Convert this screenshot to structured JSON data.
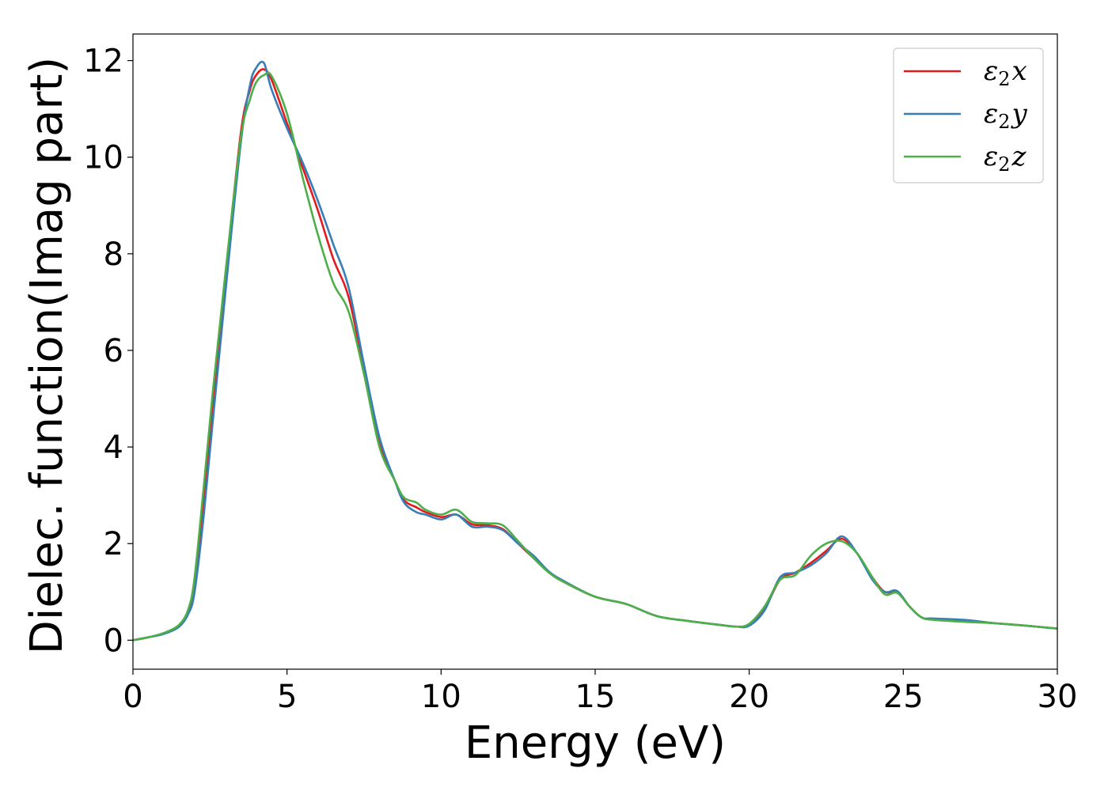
{
  "chart_data": {
    "type": "line",
    "title": "",
    "xlabel": "Energy (eV)",
    "ylabel": "Dielec. function(Imag part)",
    "xlim": [
      0,
      30
    ],
    "ylim": [
      -0.6,
      12.55
    ],
    "xticks": [
      0,
      5,
      10,
      15,
      20,
      25,
      30
    ],
    "yticks": [
      0,
      2,
      4,
      6,
      8,
      10,
      12
    ],
    "grid": false,
    "legend_placement": "top-right",
    "series": [
      {
        "name": "ε2x",
        "legend": {
          "base": "ε",
          "sub": "2",
          "var": "x"
        },
        "color": "#e41a1c",
        "x": [
          0,
          0.5,
          1.0,
          1.5,
          1.8,
          2.0,
          2.3,
          2.6,
          3.0,
          3.5,
          3.8,
          4.0,
          4.25,
          4.5,
          5.0,
          5.5,
          6.0,
          6.5,
          7.0,
          7.5,
          8.0,
          8.5,
          8.8,
          9.2,
          9.5,
          10.0,
          10.5,
          11.0,
          11.5,
          12.0,
          12.5,
          13.0,
          13.5,
          14.0,
          15.0,
          16.0,
          17.0,
          18.0,
          19.0,
          19.6,
          20.0,
          20.5,
          21.0,
          21.5,
          22.0,
          22.5,
          23.0,
          23.5,
          24.0,
          24.4,
          24.8,
          25.2,
          25.6,
          26.0,
          27.0,
          28.0,
          29.0,
          30.0
        ],
        "y": [
          0.0,
          0.06,
          0.14,
          0.3,
          0.6,
          1.2,
          3.0,
          5.0,
          7.5,
          10.5,
          11.4,
          11.7,
          11.82,
          11.6,
          10.7,
          9.8,
          8.9,
          7.9,
          7.1,
          5.6,
          4.1,
          3.3,
          2.9,
          2.75,
          2.65,
          2.55,
          2.6,
          2.4,
          2.38,
          2.3,
          2.0,
          1.7,
          1.4,
          1.2,
          0.9,
          0.75,
          0.5,
          0.4,
          0.32,
          0.28,
          0.32,
          0.65,
          1.25,
          1.4,
          1.6,
          1.85,
          2.1,
          1.8,
          1.3,
          1.0,
          1.0,
          0.7,
          0.47,
          0.43,
          0.4,
          0.35,
          0.3,
          0.24
        ]
      },
      {
        "name": "ε2y",
        "legend": {
          "base": "ε",
          "sub": "2",
          "var": "y"
        },
        "color": "#377eb8",
        "x": [
          0,
          0.5,
          1.0,
          1.5,
          1.8,
          2.0,
          2.3,
          2.6,
          3.0,
          3.5,
          3.8,
          4.0,
          4.25,
          4.5,
          5.0,
          5.5,
          6.0,
          6.5,
          7.0,
          7.5,
          8.0,
          8.5,
          8.8,
          9.2,
          9.5,
          10.0,
          10.5,
          11.0,
          11.5,
          12.0,
          12.5,
          13.0,
          13.5,
          14.0,
          15.0,
          16.0,
          17.0,
          18.0,
          19.0,
          19.6,
          20.0,
          20.5,
          21.0,
          21.5,
          22.0,
          22.5,
          23.0,
          23.5,
          24.0,
          24.4,
          24.8,
          25.2,
          25.6,
          26.0,
          27.0,
          28.0,
          29.0,
          30.0
        ],
        "y": [
          0.0,
          0.06,
          0.13,
          0.28,
          0.55,
          1.0,
          2.6,
          4.6,
          7.2,
          10.3,
          11.5,
          11.85,
          11.95,
          11.4,
          10.6,
          9.9,
          9.1,
          8.2,
          7.3,
          5.7,
          4.2,
          3.3,
          2.85,
          2.65,
          2.6,
          2.5,
          2.6,
          2.35,
          2.35,
          2.28,
          2.0,
          1.75,
          1.42,
          1.22,
          0.9,
          0.75,
          0.5,
          0.4,
          0.32,
          0.28,
          0.3,
          0.62,
          1.3,
          1.4,
          1.55,
          1.8,
          2.15,
          1.8,
          1.25,
          1.0,
          1.02,
          0.7,
          0.47,
          0.45,
          0.42,
          0.35,
          0.3,
          0.24
        ]
      },
      {
        "name": "ε2z",
        "legend": {
          "base": "ε",
          "sub": "2",
          "var": "z"
        },
        "color": "#4daf4a",
        "x": [
          0,
          0.5,
          1.0,
          1.5,
          1.8,
          2.0,
          2.3,
          2.6,
          3.0,
          3.5,
          3.8,
          4.0,
          4.25,
          4.5,
          5.0,
          5.5,
          6.0,
          6.5,
          7.0,
          7.5,
          8.0,
          8.5,
          8.8,
          9.2,
          9.5,
          10.0,
          10.5,
          11.0,
          11.5,
          12.0,
          12.5,
          13.0,
          13.5,
          14.0,
          15.0,
          16.0,
          17.0,
          18.0,
          19.0,
          19.6,
          20.0,
          20.5,
          21.0,
          21.5,
          22.0,
          22.5,
          23.0,
          23.5,
          24.0,
          24.4,
          24.8,
          25.2,
          25.6,
          26.0,
          27.0,
          28.0,
          29.0,
          30.0
        ],
        "y": [
          0.0,
          0.06,
          0.15,
          0.32,
          0.65,
          1.3,
          3.2,
          5.2,
          7.6,
          10.4,
          11.2,
          11.55,
          11.7,
          11.68,
          10.9,
          9.6,
          8.4,
          7.4,
          6.8,
          5.5,
          4.0,
          3.3,
          2.95,
          2.85,
          2.7,
          2.6,
          2.7,
          2.45,
          2.42,
          2.38,
          2.05,
          1.7,
          1.4,
          1.2,
          0.9,
          0.75,
          0.5,
          0.4,
          0.32,
          0.28,
          0.34,
          0.7,
          1.25,
          1.35,
          1.75,
          2.0,
          2.05,
          1.8,
          1.3,
          0.95,
          0.98,
          0.7,
          0.47,
          0.42,
          0.38,
          0.35,
          0.3,
          0.24
        ]
      }
    ]
  }
}
